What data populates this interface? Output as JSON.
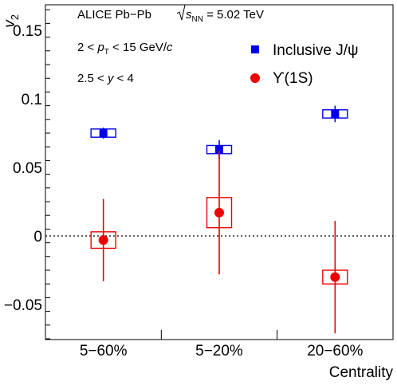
{
  "chart_data": {
    "type": "scatter",
    "ylabel": "v2",
    "xlabel": "Centrality",
    "categories": [
      "5−60%",
      "5−20%",
      "20−60%"
    ],
    "ylim": [
      -0.075,
      0.17
    ],
    "yticks": [
      "0.15",
      "0.1",
      "0.05",
      "0",
      "−0.05"
    ],
    "ytick_values": [
      0.15,
      0.1,
      0.05,
      0,
      -0.05
    ],
    "reference_line": {
      "y": 0,
      "style": "dotted"
    },
    "annotations": {
      "line1_text": "ALICE Pb−Pb",
      "line1_sqrt": "s",
      "line1_sub": "NN",
      "line1_value": " = 5.02 TeV",
      "line2_pre": "2 < ",
      "line2_p": "p",
      "line2_sub": "T",
      "line2_post": " < 15 GeV/",
      "line2_c": "c",
      "line3_pre": "2.5 < ",
      "line3_y": "y",
      "line3_post": " < 4"
    },
    "series": [
      {
        "name": "Inclusive J/ψ",
        "color": "#0000ee",
        "marker": "square",
        "values": [
          0.075,
          0.063,
          0.089
        ],
        "stat_err": [
          0.004,
          0.007,
          0.006
        ],
        "syst_err": [
          0.003,
          0.003,
          0.003
        ]
      },
      {
        "name": "ϒ(1S)",
        "color": "#ee0000",
        "marker": "circle",
        "values": [
          -0.003,
          0.017,
          -0.03
        ],
        "stat_err": [
          0.03,
          0.045,
          0.041
        ],
        "syst_err": [
          0.006,
          0.011,
          0.005
        ]
      }
    ]
  }
}
